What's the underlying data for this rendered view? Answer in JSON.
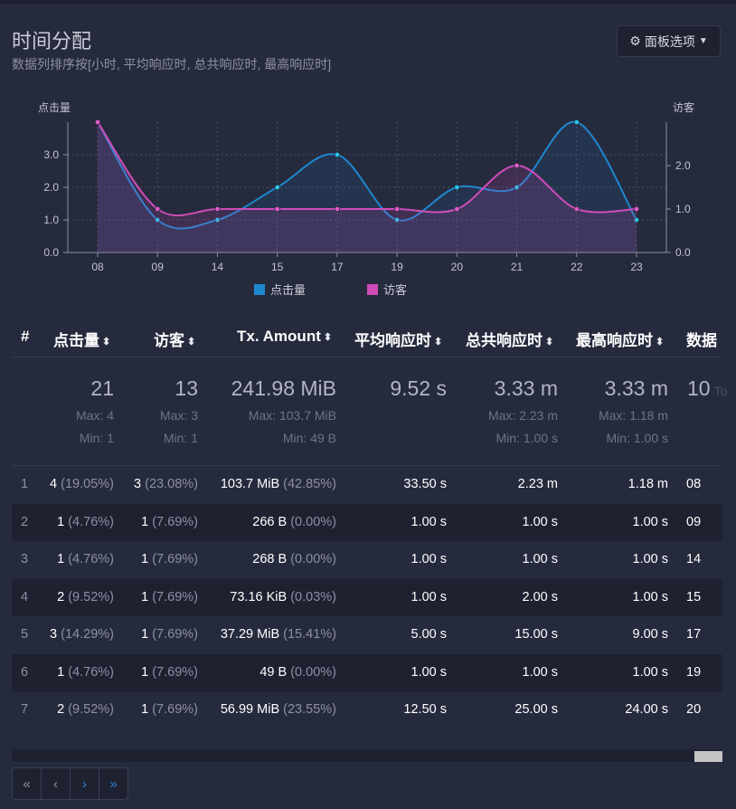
{
  "panel": {
    "title": "时间分配",
    "subtitle": "数据列排序按[小时, 平均响应时, 总共响应时, 最高响应时]",
    "options_label": "面板选项",
    "options_icon": "gear-icon"
  },
  "chart_data": {
    "type": "line",
    "categories": [
      "08",
      "09",
      "14",
      "15",
      "17",
      "19",
      "20",
      "21",
      "22",
      "23"
    ],
    "series": [
      {
        "name": "点击量",
        "axis": "left",
        "color": "#1f87d0",
        "values": [
          4,
          1,
          1,
          2,
          3,
          1,
          2,
          2,
          4,
          1
        ]
      },
      {
        "name": "访客",
        "axis": "right",
        "color": "#cf4cb8",
        "values": [
          3,
          1,
          1,
          1,
          1,
          1,
          1,
          2,
          1,
          1
        ]
      }
    ],
    "ylabel_left": "点击量",
    "ylabel_right": "访客",
    "yticks_left": [
      "0.0",
      "1.0",
      "2.0",
      "3.0"
    ],
    "yticks_right": [
      "0.0",
      "1.0",
      "2.0"
    ],
    "ylim_left": [
      0,
      4
    ],
    "ylim_right": [
      0,
      3
    ],
    "grid": true,
    "legend": "bottom"
  },
  "table": {
    "headers": [
      "#",
      "点击量",
      "访客",
      "Tx. Amount",
      "平均响应时",
      "总共响应时",
      "最高响应时",
      "数据"
    ],
    "summary": {
      "hits": {
        "total": "21",
        "max": "Max: 4",
        "min": "Min: 1"
      },
      "visitors": {
        "total": "13",
        "max": "Max: 3",
        "min": "Min: 1"
      },
      "tx": {
        "total": "241.98 MiB",
        "max": "Max: 103.7 MiB",
        "min": "Min: 49 B"
      },
      "avg": {
        "total": "9.52 s"
      },
      "cum": {
        "total": "3.33 m",
        "max": "Max: 2.23 m",
        "min": "Min: 1.00 s"
      },
      "maxts": {
        "total": "3.33 m",
        "max": "Max: 1.18 m",
        "min": "Min: 1.00 s"
      },
      "data": {
        "total": "10",
        "suffix": "To"
      }
    },
    "rows": [
      {
        "idx": "1",
        "hits": "4",
        "hits_pct": "(19.05%)",
        "vis": "3",
        "vis_pct": "(23.08%)",
        "tx": "103.7 MiB",
        "tx_pct": "(42.85%)",
        "avg": "33.50 s",
        "cum": "2.23 m",
        "max": "1.18 m",
        "data": "08"
      },
      {
        "idx": "2",
        "hits": "1",
        "hits_pct": "(4.76%)",
        "vis": "1",
        "vis_pct": "(7.69%)",
        "tx": "266 B",
        "tx_pct": "(0.00%)",
        "avg": "1.00 s",
        "cum": "1.00 s",
        "max": "1.00 s",
        "data": "09"
      },
      {
        "idx": "3",
        "hits": "1",
        "hits_pct": "(4.76%)",
        "vis": "1",
        "vis_pct": "(7.69%)",
        "tx": "268 B",
        "tx_pct": "(0.00%)",
        "avg": "1.00 s",
        "cum": "1.00 s",
        "max": "1.00 s",
        "data": "14"
      },
      {
        "idx": "4",
        "hits": "2",
        "hits_pct": "(9.52%)",
        "vis": "1",
        "vis_pct": "(7.69%)",
        "tx": "73.16 KiB",
        "tx_pct": "(0.03%)",
        "avg": "1.00 s",
        "cum": "2.00 s",
        "max": "1.00 s",
        "data": "15"
      },
      {
        "idx": "5",
        "hits": "3",
        "hits_pct": "(14.29%)",
        "vis": "1",
        "vis_pct": "(7.69%)",
        "tx": "37.29 MiB",
        "tx_pct": "(15.41%)",
        "avg": "5.00 s",
        "cum": "15.00 s",
        "max": "9.00 s",
        "data": "17"
      },
      {
        "idx": "6",
        "hits": "1",
        "hits_pct": "(4.76%)",
        "vis": "1",
        "vis_pct": "(7.69%)",
        "tx": "49 B",
        "tx_pct": "(0.00%)",
        "avg": "1.00 s",
        "cum": "1.00 s",
        "max": "1.00 s",
        "data": "19"
      },
      {
        "idx": "7",
        "hits": "2",
        "hits_pct": "(9.52%)",
        "vis": "1",
        "vis_pct": "(7.69%)",
        "tx": "56.99 MiB",
        "tx_pct": "(23.55%)",
        "avg": "12.50 s",
        "cum": "25.00 s",
        "max": "24.00 s",
        "data": "20"
      }
    ]
  },
  "pagination": {
    "first": "«",
    "prev": "‹",
    "next": "›",
    "last": "»"
  },
  "colors": {
    "background": "#262a3d",
    "hits": "#1f87d0",
    "visitors": "#cf4cb8"
  }
}
